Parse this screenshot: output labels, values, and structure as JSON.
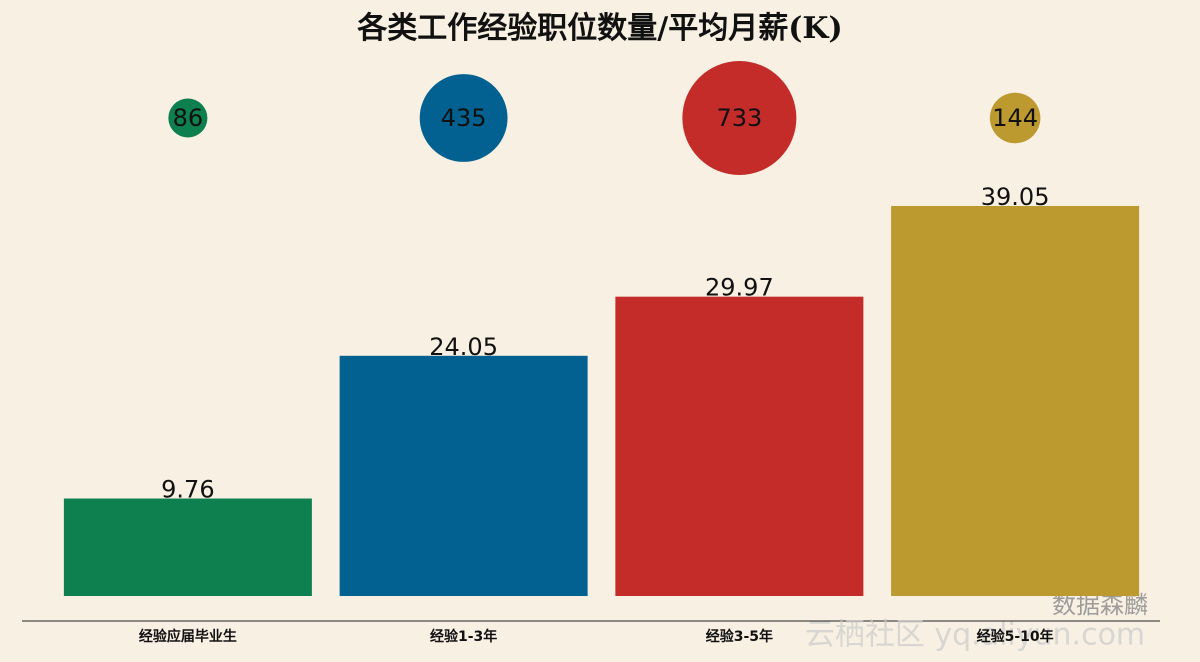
{
  "chart_data": {
    "type": "bar",
    "title": "各类工作经验职位数量/平均月薪(K)",
    "categories": [
      "经验应届毕业生",
      "经验1-3年",
      "经验3-5年",
      "经验5-10年"
    ],
    "values": [
      9.76,
      24.05,
      29.97,
      39.05
    ],
    "counts": [
      86,
      435,
      733,
      144
    ],
    "colors": [
      "#0e8050",
      "#026191",
      "#c42c2a",
      "#bd9a30"
    ]
  },
  "watermarks": [
    "数据森麟",
    "云栖社区 yq.aliyun.com"
  ]
}
